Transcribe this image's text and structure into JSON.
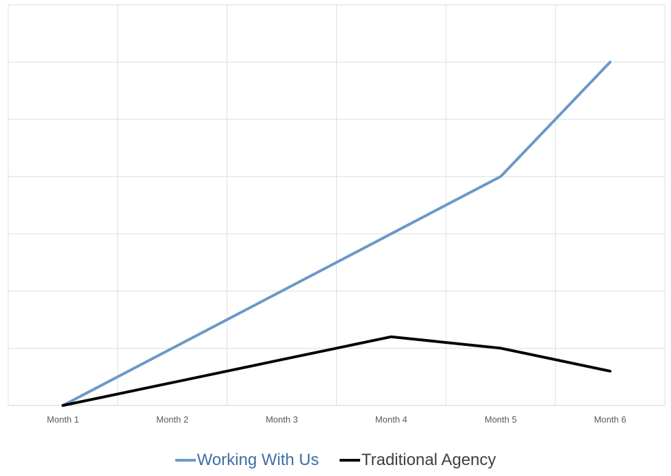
{
  "chart_data": {
    "type": "line",
    "categories": [
      "Month 1",
      "Month 2",
      "Month 3",
      "Month 4",
      "Month 5",
      "Month 6"
    ],
    "series": [
      {
        "name": "Working With Us",
        "values": [
          0,
          1,
          2,
          3,
          4,
          6
        ],
        "color": "#6a99c8"
      },
      {
        "name": "Traditional Agency",
        "values": [
          0,
          0.4,
          0.8,
          1.2,
          1.0,
          0.6
        ],
        "color": "#000000"
      }
    ],
    "ylim": [
      0,
      7
    ],
    "ystep": 1,
    "grid": true,
    "legend": "bottom",
    "title": "",
    "xlabel": "",
    "ylabel": ""
  }
}
